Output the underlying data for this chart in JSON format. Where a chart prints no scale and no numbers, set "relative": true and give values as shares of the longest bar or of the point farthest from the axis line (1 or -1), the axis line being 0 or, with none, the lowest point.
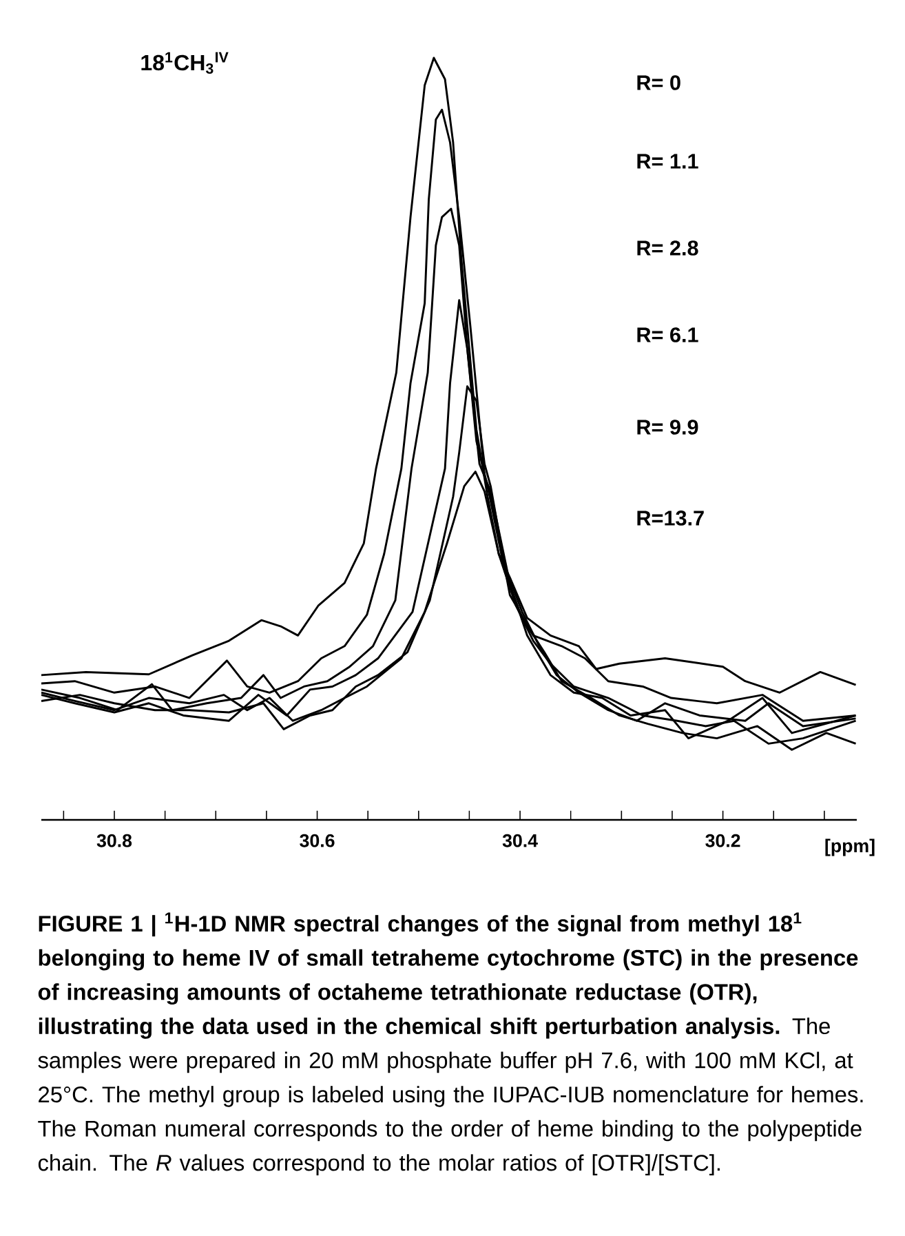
{
  "chart_data": {
    "type": "line",
    "relative": true,
    "xlabel": "[ppm]",
    "xlim": [
      30.872,
      30.068
    ],
    "xticks": [
      {
        "value": 30.85,
        "label": null
      },
      30.8,
      {
        "value": 30.75,
        "label": null
      },
      {
        "value": 30.7,
        "label": null
      },
      {
        "value": 30.65,
        "label": null
      },
      30.6,
      {
        "value": 30.55,
        "label": null
      },
      {
        "value": 30.5,
        "label": null
      },
      {
        "value": 30.45,
        "label": null
      },
      30.4,
      {
        "value": 30.35,
        "label": null
      },
      {
        "value": 30.3,
        "label": null
      },
      {
        "value": 30.25,
        "label": null
      },
      30.2,
      {
        "value": 30.15,
        "label": null
      },
      {
        "value": 30.1,
        "label": null
      }
    ],
    "annotations": [
      "18$^{1}$CH$_{3}$$^{IV}$",
      "R= 0",
      "R= 1.1",
      "R= 2.8",
      "R= 6.1",
      "R= 9.9",
      "R=13.7",
      "FIGURE 1 | $^{1}$H-1D NMR spectral changes of the signal from methyl 18$^{1}$ belonging to heme IV of small tetraheme cytochrome (STC) in the presence of increasing amounts of octaheme tetrathionate reductase (OTR), illustrating the data used in the chemical shift perturbation analysis.",
      "The samples were prepared in 20 mM phosphate buffer pH 7.6, with 100 mM KCl, at 25°C. The methyl group is labeled using the IUPAC-IUB nomenclature for hemes. The Roman numeral corresponds to the order of heme binding to the polypeptide chain. The *R* values correspond to the molar ratios of [OTR]/[STC]."
    ],
    "series": [
      {
        "color": "#000000",
        "x": [
          30.872,
          30.828,
          30.766,
          30.723,
          30.687,
          30.655,
          30.636,
          30.619,
          30.599,
          30.573,
          30.554,
          30.542,
          30.522,
          30.508,
          30.494,
          30.485,
          30.474,
          30.466,
          30.458,
          30.443,
          30.432,
          30.421,
          30.41,
          30.393,
          30.37,
          30.342,
          30.325,
          30.302,
          30.257,
          30.2,
          30.178,
          30.144,
          30.104,
          30.069
        ],
        "values": [
          0.19,
          0.194,
          0.191,
          0.216,
          0.235,
          0.262,
          0.254,
          0.242,
          0.281,
          0.311,
          0.363,
          0.461,
          0.587,
          0.791,
          0.964,
          1.0,
          0.972,
          0.889,
          0.738,
          0.512,
          0.424,
          0.349,
          0.318,
          0.265,
          0.242,
          0.228,
          0.198,
          0.205,
          0.212,
          0.201,
          0.182,
          0.167,
          0.194,
          0.177
        ]
      },
      {
        "color": "#000000",
        "x": [
          30.872,
          30.839,
          30.8,
          30.76,
          30.726,
          30.689,
          30.669,
          30.647,
          30.619,
          30.596,
          30.573,
          30.551,
          30.534,
          30.517,
          30.508,
          30.494,
          30.49,
          30.483,
          30.477,
          30.469,
          30.46,
          30.449,
          30.435,
          30.426,
          30.41,
          30.387,
          30.359,
          30.336,
          30.313,
          30.279,
          30.251,
          30.206,
          30.161,
          30.121,
          30.069
        ],
        "values": [
          0.179,
          0.182,
          0.167,
          0.175,
          0.16,
          0.209,
          0.175,
          0.167,
          0.182,
          0.212,
          0.228,
          0.269,
          0.349,
          0.461,
          0.573,
          0.678,
          0.814,
          0.919,
          0.932,
          0.889,
          0.791,
          0.648,
          0.452,
          0.408,
          0.295,
          0.242,
          0.228,
          0.212,
          0.182,
          0.175,
          0.16,
          0.153,
          0.164,
          0.13,
          0.137
        ]
      },
      {
        "color": "#000000",
        "x": [
          30.872,
          30.834,
          30.797,
          30.763,
          30.743,
          30.709,
          30.675,
          30.653,
          30.636,
          30.613,
          30.59,
          30.568,
          30.545,
          30.523,
          30.507,
          30.491,
          30.483,
          30.477,
          30.468,
          30.46,
          30.452,
          30.44,
          30.429,
          30.41,
          30.393,
          30.37,
          30.347,
          30.319,
          30.291,
          30.257,
          30.234,
          30.195,
          30.161,
          30.132,
          30.069
        ],
        "values": [
          0.171,
          0.16,
          0.144,
          0.178,
          0.144,
          0.153,
          0.16,
          0.19,
          0.16,
          0.175,
          0.182,
          0.201,
          0.228,
          0.288,
          0.461,
          0.587,
          0.754,
          0.791,
          0.802,
          0.754,
          0.618,
          0.467,
          0.431,
          0.31,
          0.242,
          0.19,
          0.167,
          0.16,
          0.137,
          0.144,
          0.107,
          0.13,
          0.16,
          0.114,
          0.137
        ]
      },
      {
        "color": "#000000",
        "x": [
          30.872,
          30.839,
          30.8,
          30.766,
          30.732,
          30.687,
          30.658,
          30.63,
          30.607,
          30.585,
          30.562,
          30.54,
          30.506,
          30.474,
          30.469,
          30.46,
          30.452,
          30.443,
          30.432,
          30.415,
          30.398,
          30.376,
          30.359,
          30.33,
          30.302,
          30.274,
          30.24,
          30.206,
          30.166,
          30.132,
          30.098,
          30.069
        ],
        "values": [
          0.164,
          0.153,
          0.141,
          0.153,
          0.137,
          0.13,
          0.164,
          0.137,
          0.171,
          0.175,
          0.19,
          0.212,
          0.273,
          0.461,
          0.573,
          0.682,
          0.618,
          0.497,
          0.438,
          0.326,
          0.265,
          0.22,
          0.182,
          0.16,
          0.137,
          0.126,
          0.114,
          0.107,
          0.123,
          0.092,
          0.114,
          0.1
        ]
      },
      {
        "color": "#000000",
        "x": [
          30.872,
          30.834,
          30.8,
          30.76,
          30.726,
          30.687,
          30.653,
          30.633,
          30.607,
          30.585,
          30.562,
          30.54,
          30.511,
          30.489,
          30.466,
          30.46,
          30.452,
          30.443,
          30.435,
          30.429,
          30.415,
          30.398,
          30.381,
          30.364,
          30.342,
          30.313,
          30.285,
          30.257,
          30.223,
          30.178,
          30.155,
          30.121,
          30.069
        ],
        "values": [
          0.156,
          0.164,
          0.153,
          0.144,
          0.144,
          0.141,
          0.153,
          0.119,
          0.137,
          0.144,
          0.175,
          0.19,
          0.22,
          0.288,
          0.424,
          0.482,
          0.569,
          0.55,
          0.467,
          0.438,
          0.333,
          0.273,
          0.228,
          0.19,
          0.167,
          0.144,
          0.13,
          0.153,
          0.137,
          0.13,
          0.153,
          0.123,
          0.133
        ]
      },
      {
        "color": "#000000",
        "x": [
          30.872,
          30.839,
          30.8,
          30.766,
          30.726,
          30.692,
          30.669,
          30.647,
          30.624,
          30.596,
          30.573,
          30.551,
          30.517,
          30.494,
          30.472,
          30.455,
          30.444,
          30.435,
          30.421,
          30.404,
          30.387,
          30.37,
          30.347,
          30.313,
          30.279,
          30.245,
          30.217,
          30.189,
          30.155,
          30.121,
          30.069
        ],
        "values": [
          0.167,
          0.156,
          0.144,
          0.16,
          0.153,
          0.164,
          0.144,
          0.16,
          0.13,
          0.144,
          0.16,
          0.175,
          0.212,
          0.273,
          0.363,
          0.438,
          0.457,
          0.431,
          0.349,
          0.281,
          0.235,
          0.205,
          0.175,
          0.16,
          0.137,
          0.13,
          0.123,
          0.13,
          0.1,
          0.107,
          0.13
        ]
      }
    ]
  }
}
